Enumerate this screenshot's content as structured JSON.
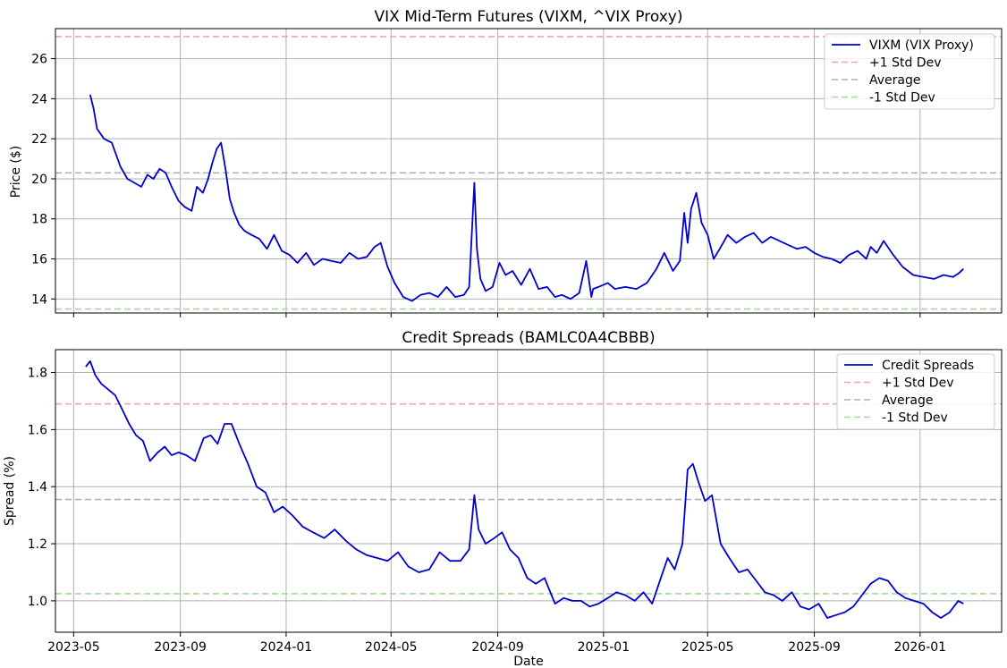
{
  "chart_data": [
    {
      "type": "line",
      "title": "VIX Mid-Term Futures (VIXM, ^VIX Proxy)",
      "xlabel": "",
      "ylabel": "Price ($)",
      "ylim": [
        13.3,
        27.5
      ],
      "yticks": [
        14,
        16,
        18,
        20,
        22,
        24,
        26
      ],
      "xlim": [
        "2023-04-10",
        "2026-04-05"
      ],
      "xticks": [
        "2023-05",
        "2023-09",
        "2024-01",
        "2024-05",
        "2024-09",
        "2025-01",
        "2025-05",
        "2025-09",
        "2026-01"
      ],
      "grid": true,
      "legend_position": "top-right",
      "series": [
        {
          "name": "VIXM (VIX Proxy)",
          "color": "#0000cc",
          "x": [
            "2023-05-20",
            "2023-05-24",
            "2023-05-28",
            "2023-06-05",
            "2023-06-14",
            "2023-06-24",
            "2023-07-02",
            "2023-07-10",
            "2023-07-18",
            "2023-07-25",
            "2023-08-01",
            "2023-08-08",
            "2023-08-15",
            "2023-08-22",
            "2023-08-30",
            "2023-09-06",
            "2023-09-14",
            "2023-09-20",
            "2023-09-27",
            "2023-10-03",
            "2023-10-08",
            "2023-10-13",
            "2023-10-18",
            "2023-10-23",
            "2023-10-28",
            "2023-11-02",
            "2023-11-08",
            "2023-11-14",
            "2023-11-22",
            "2023-12-01",
            "2023-12-10",
            "2023-12-18",
            "2023-12-27",
            "2024-01-05",
            "2024-01-14",
            "2024-01-24",
            "2024-02-02",
            "2024-02-12",
            "2024-02-22",
            "2024-03-04",
            "2024-03-14",
            "2024-03-24",
            "2024-04-03",
            "2024-04-12",
            "2024-04-19",
            "2024-04-27",
            "2024-05-05",
            "2024-05-15",
            "2024-05-25",
            "2024-06-04",
            "2024-06-14",
            "2024-06-24",
            "2024-07-04",
            "2024-07-14",
            "2024-07-24",
            "2024-07-30",
            "2024-08-05",
            "2024-08-08",
            "2024-08-12",
            "2024-08-18",
            "2024-08-26",
            "2024-09-03",
            "2024-09-10",
            "2024-09-18",
            "2024-09-28",
            "2024-10-08",
            "2024-10-18",
            "2024-10-28",
            "2024-11-06",
            "2024-11-14",
            "2024-11-24",
            "2024-12-04",
            "2024-12-12",
            "2024-12-18",
            "2024-12-20",
            "2024-12-26",
            "2025-01-06",
            "2025-01-14",
            "2025-01-26",
            "2025-02-08",
            "2025-02-20",
            "2025-03-03",
            "2025-03-12",
            "2025-03-22",
            "2025-03-30",
            "2025-04-04",
            "2025-04-08",
            "2025-04-12",
            "2025-04-18",
            "2025-04-24",
            "2025-05-01",
            "2025-05-08",
            "2025-05-15",
            "2025-05-24",
            "2025-06-03",
            "2025-06-13",
            "2025-06-23",
            "2025-07-03",
            "2025-07-13",
            "2025-07-23",
            "2025-08-02",
            "2025-08-12",
            "2025-08-22",
            "2025-09-01",
            "2025-09-11",
            "2025-09-21",
            "2025-10-01",
            "2025-10-11",
            "2025-10-21",
            "2025-10-31",
            "2025-11-05",
            "2025-11-12",
            "2025-11-20",
            "2025-12-01",
            "2025-12-12",
            "2025-12-24",
            "2026-01-05",
            "2026-01-17",
            "2026-01-28",
            "2026-02-08",
            "2026-02-15",
            "2026-02-20"
          ],
          "values": [
            24.2,
            23.5,
            22.5,
            22.0,
            21.8,
            20.6,
            20.0,
            19.8,
            19.6,
            20.2,
            20.0,
            20.5,
            20.3,
            19.6,
            18.9,
            18.6,
            18.4,
            19.6,
            19.3,
            20.0,
            20.8,
            21.5,
            21.8,
            20.5,
            19.0,
            18.3,
            17.7,
            17.4,
            17.2,
            17.0,
            16.5,
            17.2,
            16.4,
            16.2,
            15.8,
            16.3,
            15.7,
            16.0,
            15.9,
            15.8,
            16.3,
            16.0,
            16.1,
            16.6,
            16.8,
            15.6,
            14.8,
            14.1,
            13.9,
            14.2,
            14.3,
            14.1,
            14.6,
            14.1,
            14.2,
            14.6,
            19.8,
            16.5,
            15.0,
            14.4,
            14.6,
            15.8,
            15.2,
            15.4,
            14.7,
            15.5,
            14.5,
            14.6,
            14.1,
            14.2,
            14.0,
            14.3,
            15.9,
            14.1,
            14.5,
            14.6,
            14.8,
            14.5,
            14.6,
            14.5,
            14.8,
            15.5,
            16.3,
            15.4,
            15.9,
            18.3,
            16.8,
            18.5,
            19.3,
            17.8,
            17.2,
            16.0,
            16.5,
            17.2,
            16.8,
            17.1,
            17.3,
            16.8,
            17.1,
            16.9,
            16.7,
            16.5,
            16.6,
            16.3,
            16.1,
            16.0,
            15.8,
            16.2,
            16.4,
            16.0,
            16.6,
            16.3,
            16.9,
            16.2,
            15.6,
            15.2,
            15.1,
            15.0,
            15.2,
            15.1,
            15.3,
            15.5
          ]
        }
      ],
      "reference_lines": [
        {
          "name": "+1 Std Dev",
          "value": 27.1,
          "color": "#f4a5a5"
        },
        {
          "name": "Average",
          "value": 20.3,
          "color": "#b0b0b0"
        },
        {
          "name": "-1 Std Dev",
          "value": 13.5,
          "color": "#a8d8a0"
        }
      ]
    },
    {
      "type": "line",
      "title": "Credit Spreads (BAMLC0A4CBBB)",
      "xlabel": "Date",
      "ylabel": "Spread (%)",
      "ylim": [
        0.89,
        1.88
      ],
      "yticks": [
        1.0,
        1.2,
        1.4,
        1.6,
        1.8
      ],
      "xlim": [
        "2023-04-10",
        "2026-04-05"
      ],
      "xticks": [
        "2023-05",
        "2023-09",
        "2024-01",
        "2024-05",
        "2024-09",
        "2025-01",
        "2025-05",
        "2025-09",
        "2026-01"
      ],
      "grid": true,
      "legend_position": "top-right",
      "series": [
        {
          "name": "Credit Spreads",
          "color": "#0000cc",
          "x": [
            "2023-05-15",
            "2023-05-20",
            "2023-05-26",
            "2023-06-02",
            "2023-06-10",
            "2023-06-18",
            "2023-06-26",
            "2023-07-04",
            "2023-07-12",
            "2023-07-20",
            "2023-07-28",
            "2023-08-06",
            "2023-08-14",
            "2023-08-22",
            "2023-08-30",
            "2023-09-08",
            "2023-09-18",
            "2023-09-28",
            "2023-10-06",
            "2023-10-14",
            "2023-10-22",
            "2023-10-30",
            "2023-11-08",
            "2023-11-18",
            "2023-11-28",
            "2023-12-08",
            "2023-12-18",
            "2023-12-28",
            "2024-01-08",
            "2024-01-20",
            "2024-02-01",
            "2024-02-14",
            "2024-02-26",
            "2024-03-10",
            "2024-03-22",
            "2024-04-03",
            "2024-04-15",
            "2024-04-27",
            "2024-05-09",
            "2024-05-21",
            "2024-06-02",
            "2024-06-14",
            "2024-06-26",
            "2024-07-08",
            "2024-07-20",
            "2024-07-30",
            "2024-08-05",
            "2024-08-10",
            "2024-08-18",
            "2024-08-28",
            "2024-09-06",
            "2024-09-15",
            "2024-09-25",
            "2024-10-05",
            "2024-10-15",
            "2024-10-25",
            "2024-11-06",
            "2024-11-16",
            "2024-11-26",
            "2024-12-06",
            "2024-12-16",
            "2024-12-26",
            "2025-01-06",
            "2025-01-16",
            "2025-01-26",
            "2025-02-06",
            "2025-02-16",
            "2025-02-26",
            "2025-03-08",
            "2025-03-16",
            "2025-03-24",
            "2025-04-02",
            "2025-04-08",
            "2025-04-14",
            "2025-04-20",
            "2025-04-28",
            "2025-05-06",
            "2025-05-16",
            "2025-05-26",
            "2025-06-06",
            "2025-06-16",
            "2025-06-26",
            "2025-07-06",
            "2025-07-16",
            "2025-07-26",
            "2025-08-06",
            "2025-08-16",
            "2025-08-26",
            "2025-09-06",
            "2025-09-16",
            "2025-09-26",
            "2025-10-06",
            "2025-10-16",
            "2025-10-26",
            "2025-11-05",
            "2025-11-15",
            "2025-11-25",
            "2025-12-05",
            "2025-12-15",
            "2025-12-25",
            "2026-01-05",
            "2026-01-15",
            "2026-01-25",
            "2026-02-04",
            "2026-02-14",
            "2026-02-20"
          ],
          "values": [
            1.82,
            1.84,
            1.79,
            1.76,
            1.74,
            1.72,
            1.67,
            1.62,
            1.58,
            1.56,
            1.49,
            1.52,
            1.54,
            1.51,
            1.52,
            1.51,
            1.49,
            1.57,
            1.58,
            1.55,
            1.62,
            1.62,
            1.55,
            1.48,
            1.4,
            1.38,
            1.31,
            1.33,
            1.3,
            1.26,
            1.24,
            1.22,
            1.25,
            1.21,
            1.18,
            1.16,
            1.15,
            1.14,
            1.17,
            1.12,
            1.1,
            1.11,
            1.17,
            1.14,
            1.14,
            1.18,
            1.37,
            1.25,
            1.2,
            1.22,
            1.24,
            1.18,
            1.15,
            1.08,
            1.06,
            1.08,
            0.99,
            1.01,
            1.0,
            1.0,
            0.98,
            0.99,
            1.01,
            1.03,
            1.02,
            1.0,
            1.03,
            0.99,
            1.08,
            1.15,
            1.11,
            1.2,
            1.46,
            1.48,
            1.42,
            1.35,
            1.37,
            1.2,
            1.15,
            1.1,
            1.11,
            1.07,
            1.03,
            1.02,
            1.0,
            1.03,
            0.98,
            0.97,
            0.99,
            0.94,
            0.95,
            0.96,
            0.98,
            1.02,
            1.06,
            1.08,
            1.07,
            1.03,
            1.01,
            1.0,
            0.99,
            0.96,
            0.94,
            0.96,
            1.0,
            0.99
          ]
        }
      ],
      "reference_lines": [
        {
          "name": "+1 Std Dev",
          "value": 1.69,
          "color": "#f4a5a5"
        },
        {
          "name": "Average",
          "value": 1.355,
          "color": "#b0b0b0"
        },
        {
          "name": "-1 Std Dev",
          "value": 1.025,
          "color": "#a8d8a0"
        }
      ]
    }
  ]
}
